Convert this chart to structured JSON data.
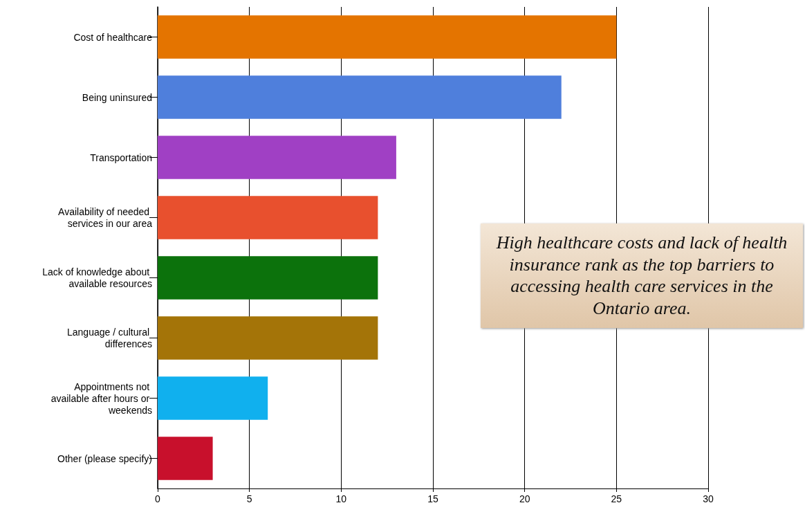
{
  "chart_data": {
    "type": "bar",
    "orientation": "horizontal",
    "categories": [
      "Cost of healthcare",
      "Being uninsured",
      "Transportation",
      "Availability of needed services in our area",
      "Lack of knowledge about available resources",
      "Language / cultural differences",
      "Appointments not available after hours or weekends",
      "Other (please specify)"
    ],
    "values": [
      25,
      22,
      13,
      12,
      12,
      12,
      6,
      3
    ],
    "colors": [
      "#e47400",
      "#4f7fdc",
      "#a040c4",
      "#e8502e",
      "#0c720c",
      "#a47408",
      "#10b0ee",
      "#c8102c"
    ],
    "xlim": [
      0,
      30
    ],
    "xticks": [
      0,
      5,
      10,
      15,
      20,
      25,
      30
    ],
    "grid": "x",
    "annotations": [
      "High healthcare costs and lack of health insurance rank as the top barriers to accessing health care services in the Ontario area."
    ]
  }
}
